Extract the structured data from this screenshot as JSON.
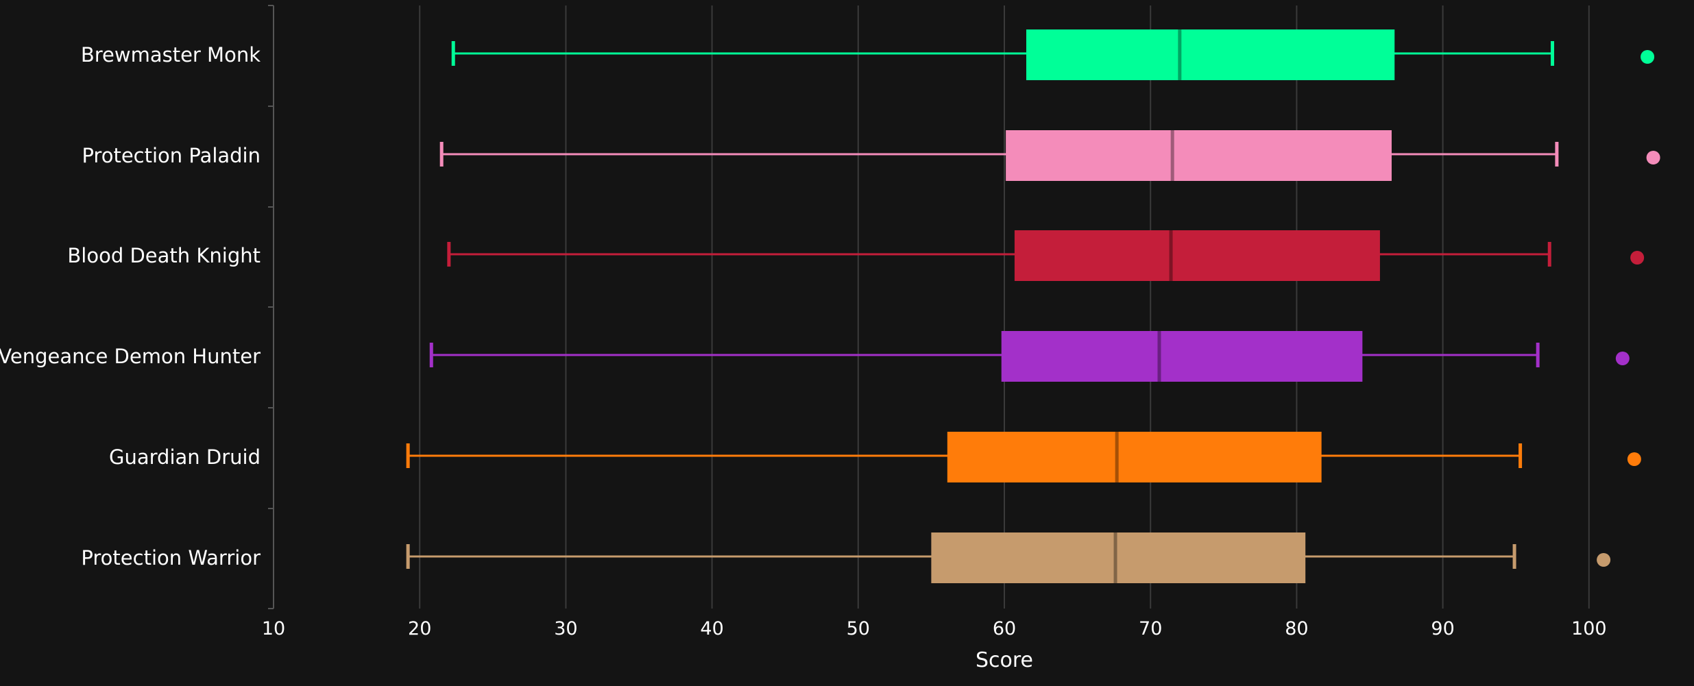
{
  "chart_data": {
    "type": "box",
    "orientation": "horizontal",
    "xlabel": "Score",
    "ylabel": "",
    "xlim": [
      10,
      100
    ],
    "xticks": [
      "10",
      "20",
      "30",
      "40",
      "50",
      "60",
      "70",
      "80",
      "90",
      "100"
    ],
    "grid": true,
    "background": "#141414",
    "categories": [
      "Brewmaster Monk",
      "Protection Paladin",
      "Blood Death Knight",
      "Vengeance Demon Hunter",
      "Guardian Druid",
      "Protection Warrior"
    ],
    "series": [
      {
        "category": "Brewmaster Monk",
        "color": "#00FF98",
        "min": 22.3,
        "q1": 61.5,
        "median": 72.0,
        "q3": 86.7,
        "max": 97.5,
        "outliers": [
          104.0
        ]
      },
      {
        "category": "Protection Paladin",
        "color": "#F48CBA",
        "min": 21.5,
        "q1": 60.1,
        "median": 71.5,
        "q3": 86.5,
        "max": 97.8,
        "outliers": [
          104.4
        ]
      },
      {
        "category": "Blood Death Knight",
        "color": "#C41E3A",
        "min": 22.0,
        "q1": 60.7,
        "median": 71.4,
        "q3": 85.7,
        "max": 97.3,
        "outliers": [
          103.3
        ]
      },
      {
        "category": "Vengeance Demon Hunter",
        "color": "#A330C9",
        "min": 20.8,
        "q1": 59.8,
        "median": 70.6,
        "q3": 84.5,
        "max": 96.5,
        "outliers": [
          102.3
        ]
      },
      {
        "category": "Guardian Druid",
        "color": "#FF7C0A",
        "min": 19.2,
        "q1": 56.1,
        "median": 67.7,
        "q3": 81.7,
        "max": 95.3,
        "outliers": [
          103.1
        ]
      },
      {
        "category": "Protection Warrior",
        "color": "#C69B6D",
        "min": 19.2,
        "q1": 55.0,
        "median": 67.6,
        "q3": 80.6,
        "max": 94.9,
        "outliers": [
          101.0
        ]
      }
    ]
  }
}
